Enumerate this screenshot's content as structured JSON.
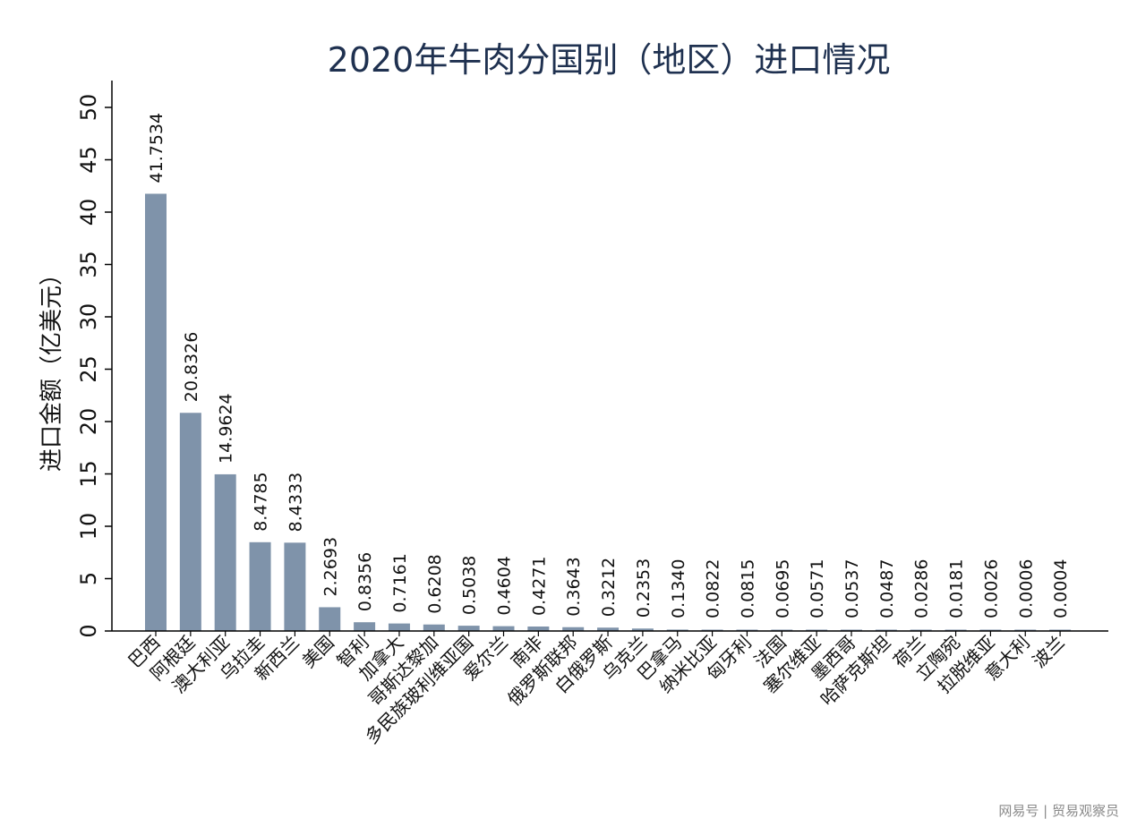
{
  "chart_data": {
    "type": "bar",
    "title": "2020年牛肉分国别（地区）进口情况",
    "ylabel": "进口金额（亿美元）",
    "xlabel": "",
    "ylim": [
      0,
      53
    ],
    "yticks": [
      0,
      5,
      10,
      15,
      20,
      25,
      30,
      35,
      40,
      45,
      50
    ],
    "grid": false,
    "legend": "none",
    "bar_color": "#7f93aa",
    "categories": [
      "巴西",
      "阿根廷",
      "澳大利亚",
      "乌拉圭",
      "新西兰",
      "美国",
      "智利",
      "加拿大",
      "哥斯达黎加",
      "多民族玻利维亚国",
      "爱尔兰",
      "南非",
      "俄罗斯联邦",
      "白俄罗斯",
      "乌克兰",
      "巴拿马",
      "纳米比亚",
      "匈牙利",
      "法国",
      "塞尔维亚",
      "墨西哥",
      "哈萨克斯坦",
      "荷兰",
      "立陶宛",
      "拉脱维亚",
      "意大利",
      "波兰"
    ],
    "values": [
      41.7534,
      20.8326,
      14.9624,
      8.4785,
      8.4333,
      2.2693,
      0.8356,
      0.7161,
      0.6208,
      0.5038,
      0.4604,
      0.4271,
      0.3643,
      0.3212,
      0.2353,
      0.134,
      0.0822,
      0.0815,
      0.0695,
      0.0571,
      0.0537,
      0.0487,
      0.0286,
      0.0181,
      0.0026,
      0.0006,
      0.0004
    ],
    "value_labels": [
      "41.7534",
      "20.8326",
      "14.9624",
      "8.4785",
      "8.4333",
      "2.2693",
      "0.8356",
      "0.7161",
      "0.6208",
      "0.5038",
      "0.4604",
      "0.4271",
      "0.3643",
      "0.3212",
      "0.2353",
      "0.1340",
      "0.0822",
      "0.0815",
      "0.0695",
      "0.0571",
      "0.0537",
      "0.0487",
      "0.0286",
      "0.0181",
      "0.0026",
      "0.0006",
      "0.0004"
    ]
  },
  "watermark": "网易号 | 贸易观察员"
}
